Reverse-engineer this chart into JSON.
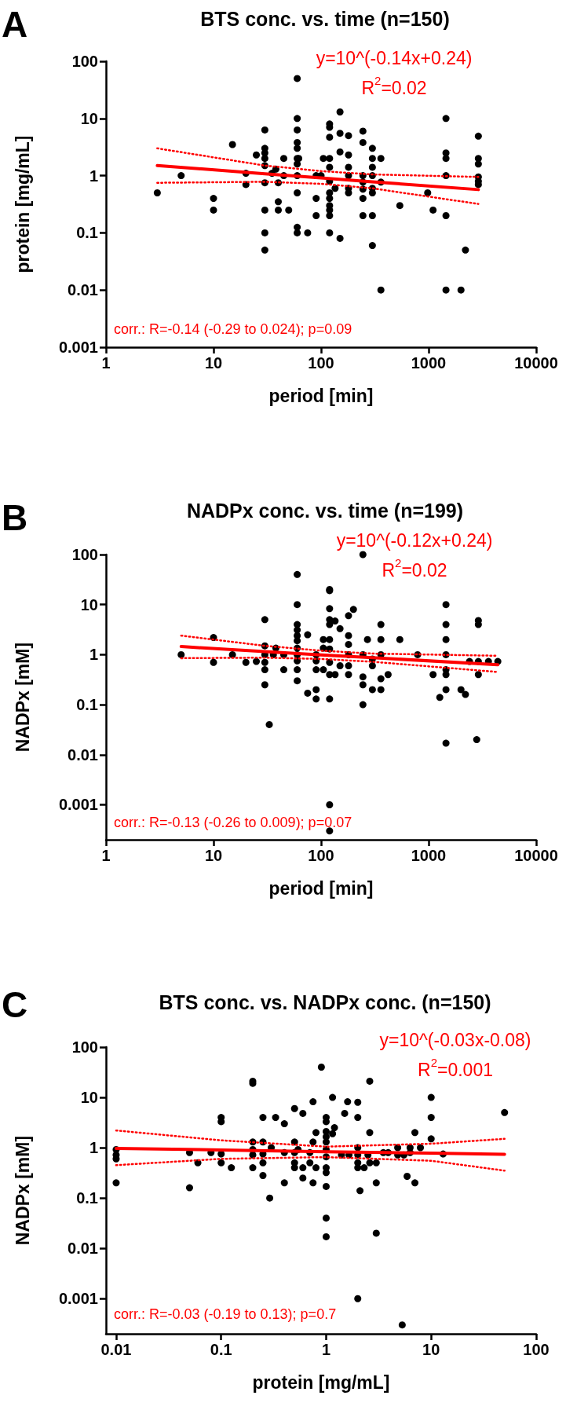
{
  "chart_data": [
    {
      "type": "scatter",
      "title": "BTS conc. vs. time (n=150)",
      "xlabel": "period [min]",
      "ylabel": "protein [mg/mL]",
      "annotations": [
        "A",
        "y=10^(-0.14x+0.24)",
        "R$^{2}$=0.02",
        "corr.: R=-0.14 (-0.29 to 0.024); p=0.09"
      ],
      "log": "xy",
      "xlim": [
        1,
        10000
      ],
      "ylim": [
        0.001,
        100
      ],
      "xticks": [
        1,
        10,
        100,
        1000,
        10000
      ],
      "yticks": [
        0.001,
        0.01,
        0.1,
        1,
        10,
        100
      ],
      "marker": "circle",
      "series": [
        {
          "color": "#000000",
          "x": [
            3,
            5,
            10,
            10,
            15,
            20,
            20,
            25,
            30,
            30,
            30,
            30,
            30,
            30,
            30,
            30,
            30,
            35,
            38,
            40,
            40,
            40,
            45,
            45,
            50,
            60,
            60,
            60,
            60,
            60,
            60,
            60,
            60,
            60,
            60,
            60,
            62,
            75,
            90,
            90,
            90,
            100,
            105,
            120,
            120,
            120,
            120,
            120,
            120,
            120,
            120,
            120,
            120,
            120,
            120,
            135,
            150,
            150,
            150,
            150,
            180,
            180,
            180,
            180,
            180,
            180,
            245,
            245,
            245,
            245,
            245,
            245,
            245,
            300,
            300,
            300,
            300,
            300,
            300,
            300,
            300,
            360,
            360,
            360,
            540,
            980,
            1100,
            1450,
            1450,
            1450,
            1450,
            1450,
            1450,
            2000,
            2200,
            2900,
            2900,
            2900,
            2900,
            2900,
            2900
          ],
          "values": [
            0.5,
            1,
            0.4,
            0.25,
            3.5,
            1.1,
            0.7,
            2.3,
            6.3,
            3,
            2.5,
            2,
            1.5,
            0.75,
            0.25,
            0.1,
            0.05,
            1.1,
            1.3,
            0.75,
            0.35,
            0.25,
            2,
            1,
            0.25,
            50,
            10,
            6.3,
            3.8,
            3,
            2,
            1.6,
            1,
            0.5,
            0.125,
            0.1,
            2,
            0.1,
            1,
            0.4,
            0.2,
            1,
            2,
            2,
            8,
            7,
            4.7,
            1.4,
            0.8,
            0.5,
            0.4,
            0.3,
            0.25,
            0.2,
            0.1,
            0.6,
            13,
            5.5,
            2.6,
            0.08,
            5,
            2.3,
            1.4,
            1,
            0.6,
            0.5,
            6,
            3.8,
            1,
            0.77,
            0.58,
            0.4,
            0.2,
            3,
            2,
            1.4,
            1,
            0.6,
            0.5,
            0.2,
            0.06,
            2,
            0.77,
            0.01,
            0.3,
            0.5,
            0.25,
            10,
            2.5,
            2,
            1,
            0.2,
            0.01,
            0.01,
            0.05,
            4.9,
            2,
            1.6,
            0.95,
            0.8,
            0.7
          ]
        },
        {
          "type": "line",
          "color": "#ff0000",
          "marker": "none",
          "line_style": "solid",
          "x": [
            3,
            30,
            100,
            300,
            2900
          ],
          "values": [
            1.5,
            1.08,
            0.91,
            0.78,
            0.57
          ]
        },
        {
          "type": "line",
          "color": "#ff0000",
          "marker": "none",
          "line_style": "dotted",
          "x": [
            3,
            30,
            100,
            300,
            2900
          ],
          "values": [
            0.75,
            0.78,
            0.72,
            0.6,
            0.32
          ]
        },
        {
          "type": "line",
          "color": "#ff0000",
          "marker": "none",
          "line_style": "dotted",
          "x": [
            3,
            30,
            100,
            300,
            2900
          ],
          "values": [
            3.0,
            1.5,
            1.2,
            1.05,
            0.95
          ]
        }
      ]
    },
    {
      "type": "scatter",
      "title": "NADPx conc. vs. time (n=199)",
      "xlabel": "period [min]",
      "ylabel": "NADPx [mM]",
      "annotations": [
        "B",
        "y=10^(-0.12x+0.24)",
        "R$^{2}$=0.02",
        "corr.: R=-0.13 (-0.26 to 0.009); p=0.07"
      ],
      "log": "xy",
      "xlim": [
        1,
        10000
      ],
      "ylim": [
        0.0002,
        100
      ],
      "xticks": [
        1,
        10,
        100,
        1000,
        10000
      ],
      "yticks": [
        0.001,
        0.01,
        0.1,
        1,
        10,
        100
      ],
      "marker": "circle",
      "series": [
        {
          "color": "#000000",
          "x": [
            5,
            10,
            10,
            15,
            20,
            25,
            30,
            30,
            30,
            30,
            30,
            30,
            33,
            36,
            38,
            45,
            45,
            60,
            60,
            60,
            60,
            60,
            60,
            60,
            60,
            60,
            60,
            60,
            75,
            75,
            90,
            90,
            90,
            90,
            90,
            105,
            105,
            105,
            120,
            120,
            120,
            120,
            120,
            120,
            120,
            120,
            120,
            120,
            120,
            120,
            135,
            135,
            150,
            150,
            180,
            180,
            180,
            180,
            180,
            180,
            200,
            245,
            245,
            245,
            245,
            245,
            300,
            300,
            300,
            270,
            360,
            360,
            360,
            360,
            360,
            420,
            540,
            790,
            1100,
            1270,
            1450,
            1450,
            1450,
            1450,
            1450,
            1450,
            1450,
            1450,
            2000,
            2200,
            2400,
            2900,
            2900,
            2900,
            2900,
            2800,
            3600,
            4400
          ],
          "values": [
            1,
            2.2,
            0.7,
            1,
            0.7,
            0.73,
            5,
            1.5,
            1,
            0.7,
            0.5,
            0.25,
            0.04,
            1,
            1.35,
            1,
            0.5,
            40,
            10,
            4,
            3.1,
            2.4,
            1.9,
            1.35,
            1,
            0.75,
            0.5,
            0.3,
            2.5,
            0.17,
            1,
            0.75,
            0.5,
            0.2,
            0.13,
            2,
            1.35,
            0.5,
            20,
            19,
            8.3,
            5,
            4,
            2,
            1.3,
            0.7,
            0.4,
            0.13,
            0.001,
            0.0003,
            4.7,
            0.4,
            3.3,
            0.6,
            6,
            2.4,
            1.6,
            1,
            0.6,
            0.4,
            8,
            100,
            1,
            0.36,
            0.25,
            0.1,
            0.82,
            0.6,
            0.2,
            2,
            4,
            2,
            1,
            0.33,
            0.2,
            0.4,
            2,
            1,
            0.4,
            0.14,
            10,
            4,
            2,
            1,
            0.5,
            0.4,
            0.2,
            0.017,
            0.2,
            0.16,
            0.73,
            4.8,
            4,
            0.73,
            0.4,
            0.02,
            0.73,
            0.73
          ]
        },
        {
          "type": "line",
          "color": "#ff0000",
          "marker": "none",
          "line_style": "solid",
          "x": [
            5,
            30,
            100,
            300,
            4400
          ],
          "values": [
            1.45,
            1.15,
            0.99,
            0.87,
            0.63
          ]
        },
        {
          "type": "line",
          "color": "#ff0000",
          "marker": "none",
          "line_style": "dotted",
          "x": [
            5,
            30,
            100,
            300,
            4400
          ],
          "values": [
            0.85,
            0.87,
            0.82,
            0.72,
            0.45
          ]
        },
        {
          "type": "line",
          "color": "#ff0000",
          "marker": "none",
          "line_style": "dotted",
          "x": [
            5,
            30,
            100,
            300,
            4400
          ],
          "values": [
            2.4,
            1.5,
            1.2,
            1.05,
            0.95
          ]
        }
      ]
    },
    {
      "type": "scatter",
      "title": "BTS conc. vs. NADPx conc. (n=150)",
      "xlabel": "protein [mg/mL]",
      "ylabel": "NADPx [mM]",
      "annotations": [
        "C",
        "y=10^(-0.03x-0.08)",
        "R$^{2}$=0.001",
        "corr.: R=-0.03 (-0.19 to 0.13); p=0.7"
      ],
      "log": "xy",
      "xlim": [
        0.008,
        100
      ],
      "ylim": [
        0.0002,
        100
      ],
      "xticks": [
        0.01,
        0.1,
        1,
        10,
        100
      ],
      "yticks": [
        0.001,
        0.01,
        0.1,
        1,
        10,
        100
      ],
      "marker": "circle",
      "series": [
        {
          "color": "#000000",
          "x": [
            0.01,
            0.01,
            0.01,
            0.01,
            0.05,
            0.05,
            0.06,
            0.08,
            0.1,
            0.1,
            0.1,
            0.1,
            0.125,
            0.2,
            0.2,
            0.2,
            0.2,
            0.2,
            0.2,
            0.25,
            0.25,
            0.25,
            0.25,
            0.25,
            0.29,
            0.3,
            0.33,
            0.4,
            0.4,
            0.4,
            0.5,
            0.5,
            0.5,
            0.5,
            0.5,
            0.54,
            0.6,
            0.6,
            0.6,
            0.7,
            0.7,
            0.75,
            0.75,
            0.75,
            0.8,
            0.8,
            0.9,
            1,
            1,
            1,
            1,
            1,
            1,
            1,
            1,
            1,
            1,
            1,
            1,
            1.15,
            1.15,
            1.2,
            1.4,
            1.5,
            1.6,
            1.65,
            2,
            2,
            2,
            2,
            2,
            2,
            2,
            2.1,
            2.3,
            2.5,
            2.6,
            2.6,
            2.6,
            3,
            3,
            3,
            3.5,
            3.9,
            4.8,
            4.8,
            5.3,
            5.5,
            5.9,
            6.3,
            6.3,
            7,
            7,
            7.9,
            10,
            10,
            10,
            13,
            50
          ],
          "values": [
            0.92,
            0.72,
            0.6,
            0.2,
            0.8,
            0.16,
            0.5,
            0.8,
            4,
            3.3,
            0.75,
            0.5,
            0.4,
            21,
            19,
            1.3,
            0.92,
            0.72,
            0.4,
            4,
            1.3,
            0.75,
            0.5,
            0.28,
            0.1,
            1,
            4,
            3,
            0.8,
            0.2,
            6,
            1.3,
            0.8,
            0.5,
            0.4,
            0.92,
            4.8,
            0.4,
            0.25,
            0.8,
            0.5,
            8.2,
            1.3,
            0.2,
            0.4,
            2,
            40,
            4,
            3.3,
            2.1,
            1.65,
            1.3,
            0.92,
            0.66,
            0.4,
            0.32,
            0.17,
            0.04,
            0.017,
            10,
            1.9,
            2.5,
            0.72,
            4.8,
            8.2,
            0.72,
            8,
            4,
            1,
            0.72,
            0.5,
            0.4,
            0.001,
            0.14,
            0.4,
            0.72,
            21,
            2,
            0.5,
            0.5,
            0.2,
            0.02,
            0.8,
            0.8,
            1,
            0.72,
            0.0003,
            0.72,
            0.27,
            1,
            0.8,
            0.2,
            2,
            1,
            10,
            4,
            1.5,
            0.75,
            5
          ]
        },
        {
          "type": "line",
          "color": "#ff0000",
          "marker": "none",
          "line_style": "solid",
          "x": [
            0.01,
            0.1,
            1,
            10,
            50
          ],
          "values": [
            0.97,
            0.9,
            0.83,
            0.78,
            0.74
          ]
        },
        {
          "type": "line",
          "color": "#ff0000",
          "marker": "none",
          "line_style": "dotted",
          "x": [
            0.01,
            0.1,
            1,
            10,
            50
          ],
          "values": [
            0.45,
            0.6,
            0.65,
            0.55,
            0.35
          ]
        },
        {
          "type": "line",
          "color": "#ff0000",
          "marker": "none",
          "line_style": "dotted",
          "x": [
            0.01,
            0.1,
            1,
            10,
            50
          ],
          "values": [
            2.2,
            1.4,
            1.05,
            1.2,
            1.5
          ]
        }
      ]
    }
  ]
}
